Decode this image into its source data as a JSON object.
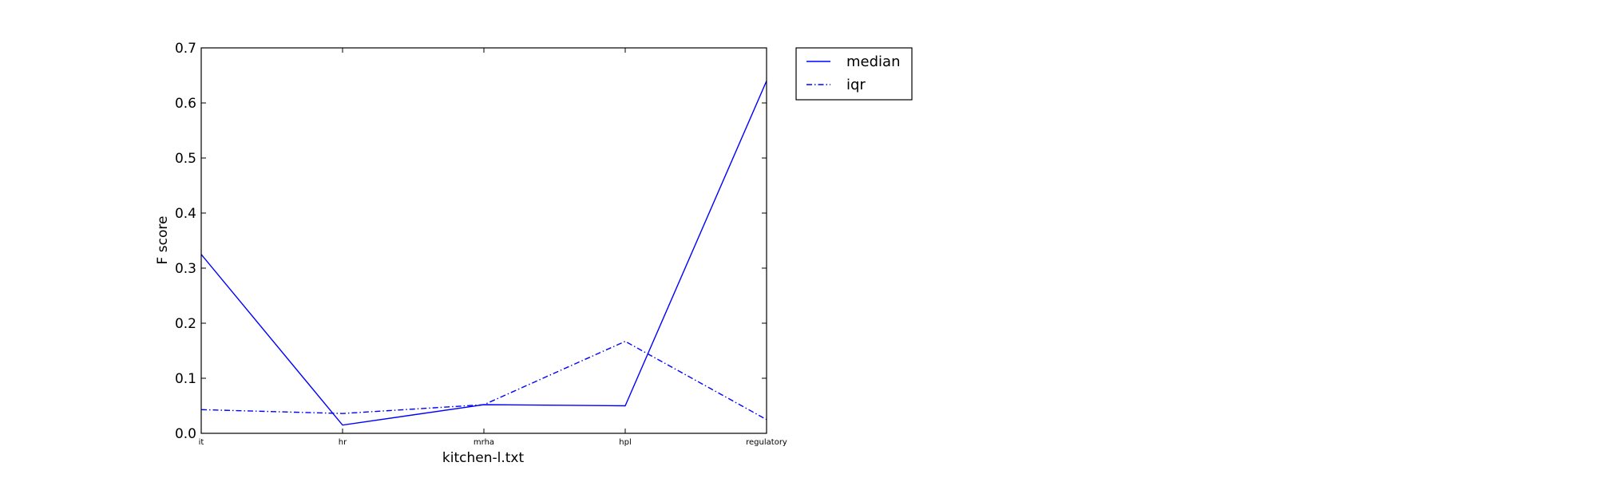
{
  "chart_data": {
    "type": "line",
    "title": "",
    "xlabel": "kitchen-l.txt",
    "ylabel": "F score",
    "categories": [
      "it",
      "hr",
      "mrha",
      "hpl",
      "regulatory"
    ],
    "ylim": [
      0.0,
      0.7
    ],
    "yticks": [
      "0.0",
      "0.1",
      "0.2",
      "0.3",
      "0.4",
      "0.5",
      "0.6",
      "0.7"
    ],
    "grid": false,
    "legend_position": "outside-top-right",
    "series": [
      {
        "name": "median",
        "values": [
          0.325,
          0.015,
          0.052,
          0.05,
          0.64
        ],
        "color": "#0000ff",
        "style": "solid"
      },
      {
        "name": "iqr",
        "values": [
          0.043,
          0.036,
          0.052,
          0.167,
          0.025
        ],
        "color": "#0000ff",
        "style": "dashdot"
      }
    ]
  }
}
